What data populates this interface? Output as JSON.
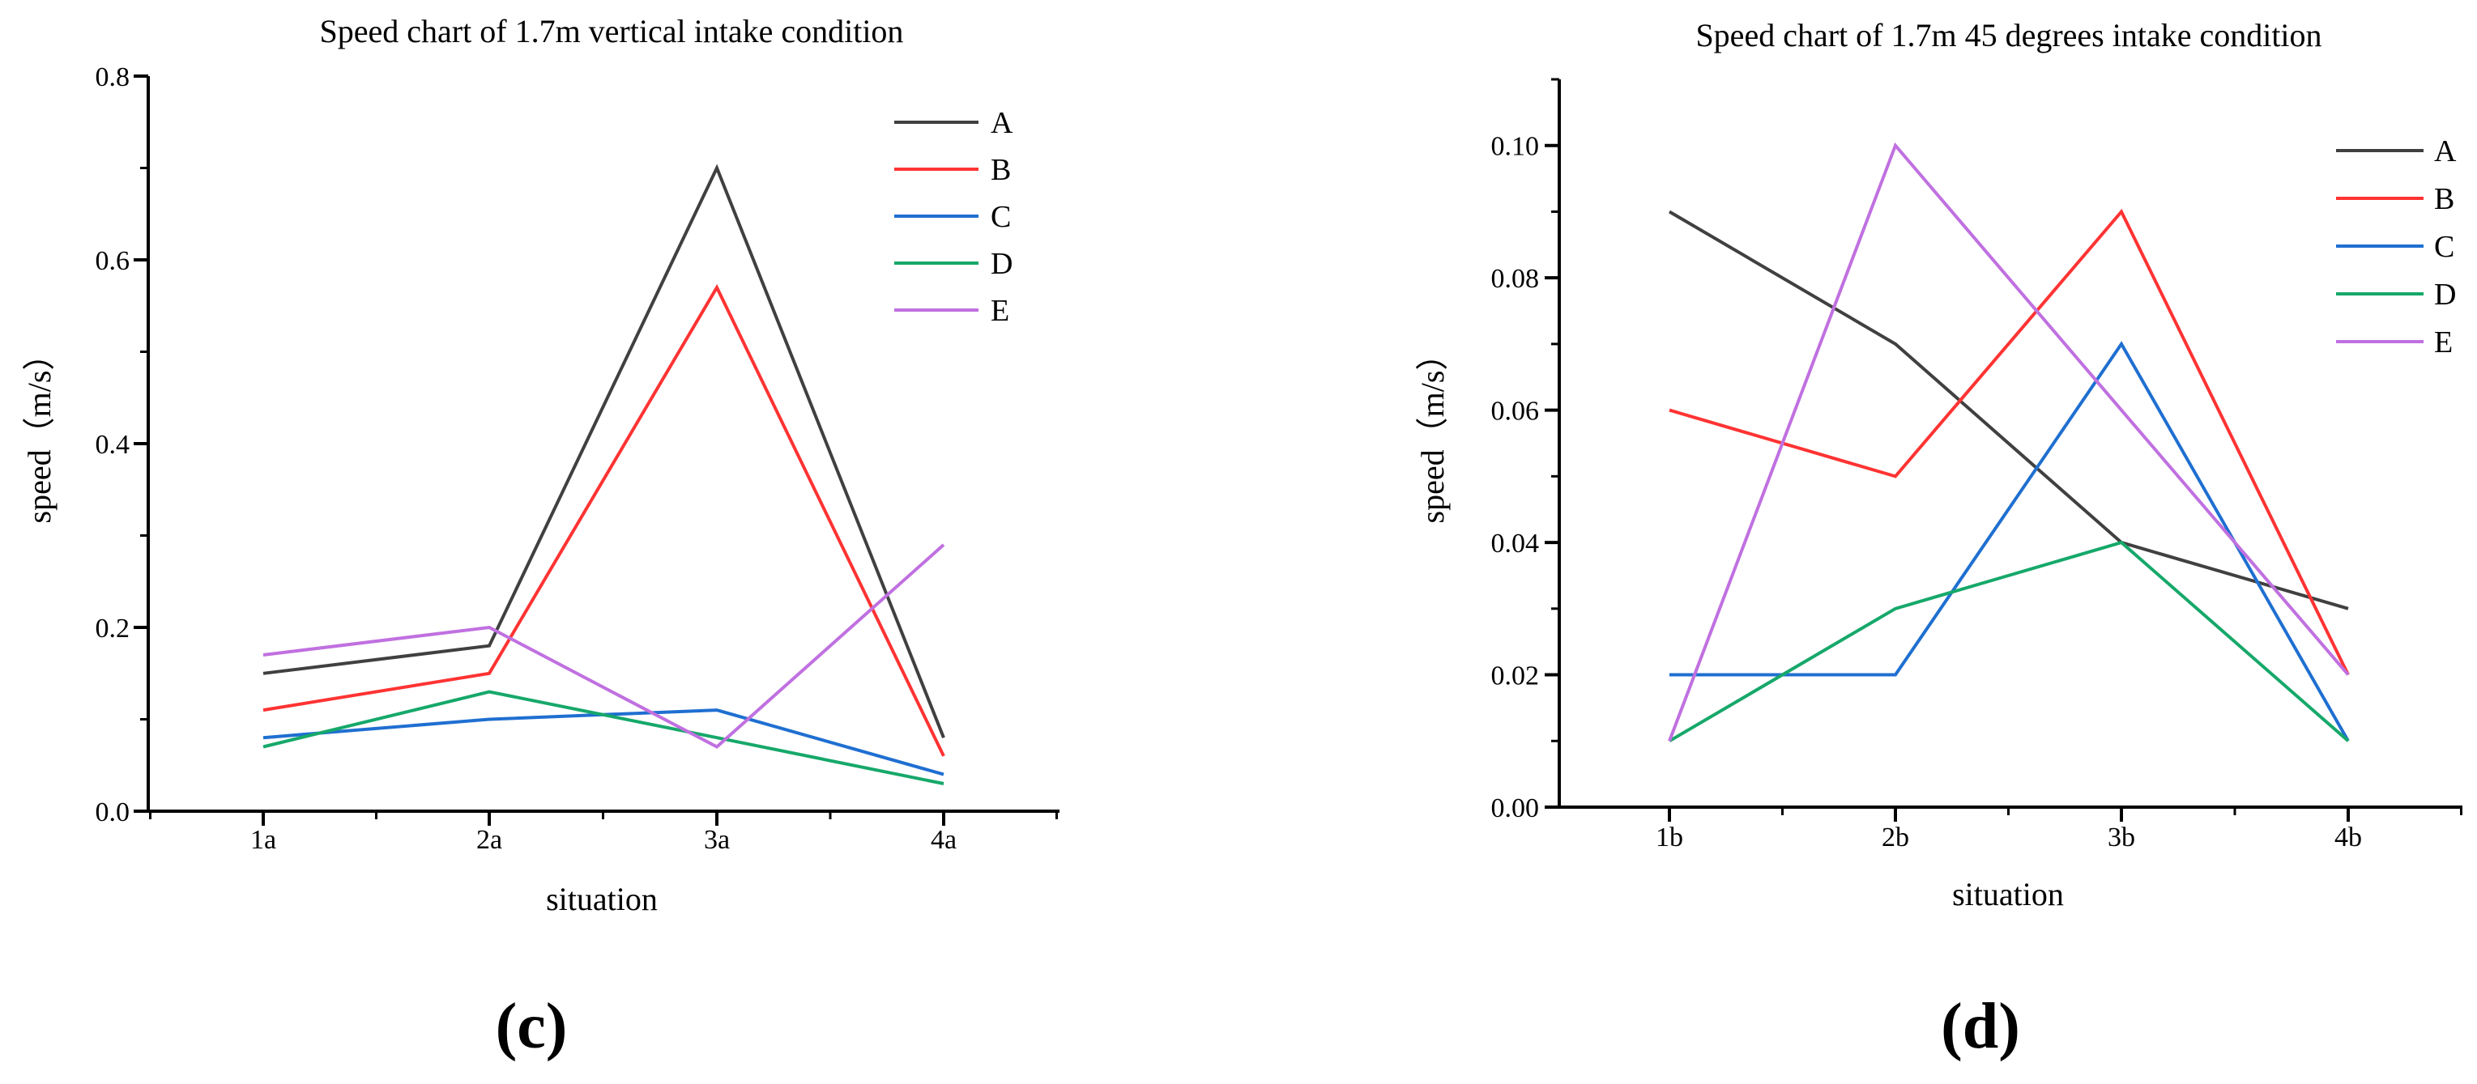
{
  "chart_data": [
    {
      "type": "line",
      "title": "Speed chart of 1.7m vertical intake condition",
      "xlabel": "situation",
      "ylabel": "speed（m/s）",
      "categories": [
        "1a",
        "2a",
        "3a",
        "4a"
      ],
      "ylim": [
        0,
        0.8
      ],
      "yticks": [
        0.0,
        0.2,
        0.4,
        0.6,
        0.8
      ],
      "ytick_labels": [
        "0.0",
        "0.2",
        "0.4",
        "0.6",
        "0.8"
      ],
      "legend_position": "top-right",
      "series": [
        {
          "name": "A",
          "color": "#404040",
          "values": [
            0.15,
            0.18,
            0.7,
            0.08
          ]
        },
        {
          "name": "B",
          "color": "#ff3333",
          "values": [
            0.11,
            0.15,
            0.57,
            0.06
          ]
        },
        {
          "name": "C",
          "color": "#1f6fd1",
          "values": [
            0.08,
            0.1,
            0.11,
            0.04
          ]
        },
        {
          "name": "D",
          "color": "#16a86a",
          "values": [
            0.07,
            0.13,
            0.08,
            0.03
          ]
        },
        {
          "name": "E",
          "color": "#c070e0",
          "values": [
            0.17,
            0.2,
            0.07,
            0.29
          ]
        }
      ]
    },
    {
      "type": "line",
      "title": "Speed chart of 1.7m 45 degrees intake condition",
      "xlabel": "situation",
      "ylabel": "speed（m/s）",
      "categories": [
        "1b",
        "2b",
        "3b",
        "4b"
      ],
      "ylim": [
        0,
        0.11
      ],
      "yticks": [
        0.0,
        0.02,
        0.04,
        0.06,
        0.08,
        0.1
      ],
      "ytick_labels": [
        "0.00",
        "0.02",
        "0.04",
        "0.06",
        "0.08",
        "0.10"
      ],
      "legend_position": "top-right",
      "series": [
        {
          "name": "A",
          "color": "#404040",
          "values": [
            0.09,
            0.07,
            0.04,
            0.03
          ]
        },
        {
          "name": "B",
          "color": "#ff3333",
          "values": [
            0.06,
            0.05,
            0.09,
            0.02
          ]
        },
        {
          "name": "C",
          "color": "#1f6fd1",
          "values": [
            0.02,
            0.02,
            0.07,
            0.01
          ]
        },
        {
          "name": "D",
          "color": "#16a86a",
          "values": [
            0.01,
            0.03,
            0.04,
            0.01
          ]
        },
        {
          "name": "E",
          "color": "#c070e0",
          "values": [
            0.01,
            0.1,
            0.06,
            0.02
          ]
        }
      ]
    }
  ],
  "panel_labels": [
    "(c)",
    "(d)"
  ]
}
